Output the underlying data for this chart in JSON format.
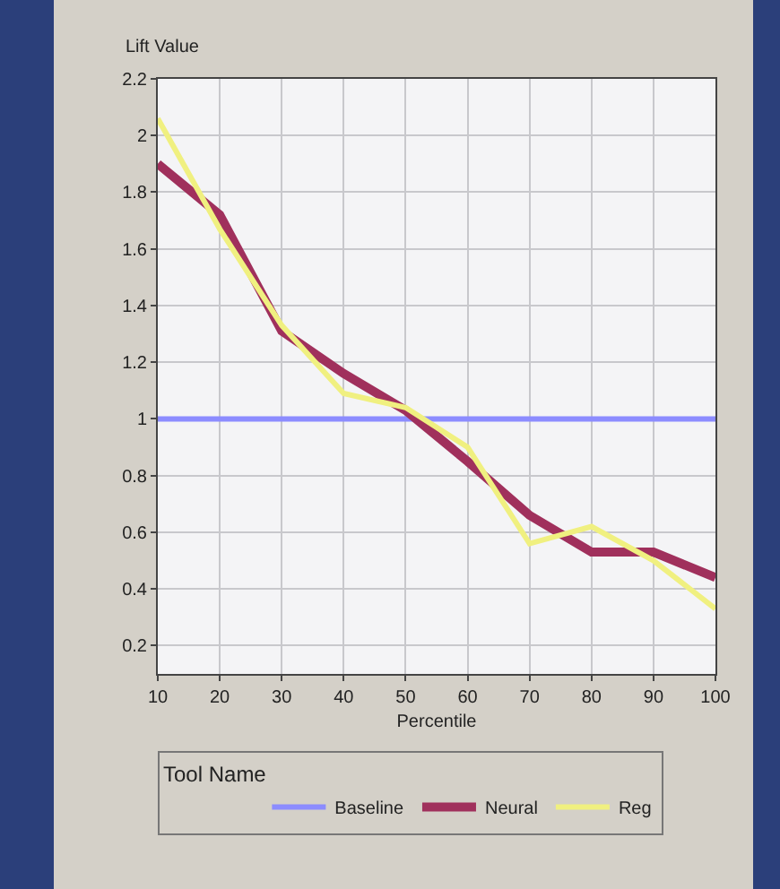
{
  "chart_data": {
    "type": "line",
    "ylabel": "Lift Value",
    "xlabel": "Percentile",
    "legend_title": "Tool Name",
    "x": [
      10,
      20,
      30,
      40,
      50,
      60,
      70,
      80,
      90,
      100
    ],
    "series": [
      {
        "name": "Baseline",
        "color": "#8c8cff",
        "values": [
          1,
          1,
          1,
          1,
          1,
          1,
          1,
          1,
          1,
          1
        ]
      },
      {
        "name": "Neural",
        "color": "#a0305c",
        "values": [
          1.9,
          1.72,
          1.31,
          1.16,
          1.03,
          0.85,
          0.66,
          0.53,
          0.53,
          0.44
        ]
      },
      {
        "name": "Reg",
        "color": "#f0f080",
        "values": [
          2.06,
          1.67,
          1.33,
          1.09,
          1.04,
          0.9,
          0.56,
          0.62,
          0.5,
          0.33
        ]
      }
    ],
    "xlim": [
      10,
      100
    ],
    "xticks": [
      10,
      20,
      30,
      40,
      50,
      60,
      70,
      80,
      90,
      100
    ],
    "ylim": [
      0.1,
      2.2
    ],
    "yticks": [
      0.2,
      0.4,
      0.6,
      0.8,
      1,
      1.2,
      1.4,
      1.6,
      1.8,
      2,
      2.2
    ],
    "grid": true,
    "legend": "bottom",
    "marker": "none",
    "line_style": "solid"
  }
}
